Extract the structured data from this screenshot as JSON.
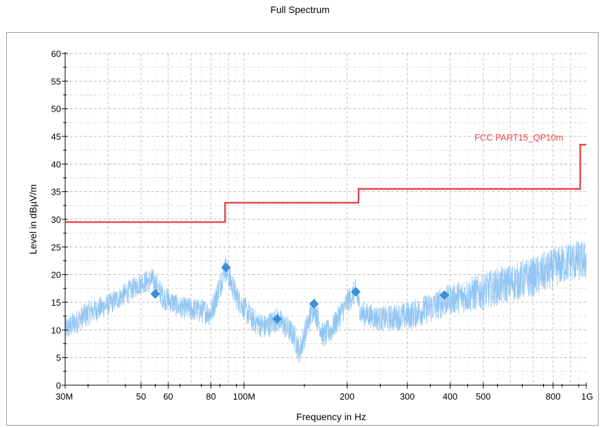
{
  "chart_data": {
    "type": "line",
    "title": "Full Spectrum",
    "xlabel": "Frequency in Hz",
    "ylabel": "Level in dBµV/m",
    "x_scale": "log",
    "xlim": [
      30000000,
      1000000000
    ],
    "ylim": [
      0,
      60
    ],
    "grid": true,
    "x_ticks": [
      {
        "value": 30000000,
        "label": "30M"
      },
      {
        "value": 50000000,
        "label": "50"
      },
      {
        "value": 60000000,
        "label": "60"
      },
      {
        "value": 80000000,
        "label": "80"
      },
      {
        "value": 100000000,
        "label": "100M"
      },
      {
        "value": 200000000,
        "label": "200"
      },
      {
        "value": 300000000,
        "label": "300"
      },
      {
        "value": 400000000,
        "label": "400"
      },
      {
        "value": 500000000,
        "label": "500"
      },
      {
        "value": 800000000,
        "label": "800"
      },
      {
        "value": 1000000000,
        "label": "1G"
      }
    ],
    "y_ticks": [
      0,
      5,
      10,
      15,
      20,
      25,
      30,
      35,
      40,
      45,
      50,
      55,
      60
    ],
    "limit_line": {
      "name": "FCC PART15_QP10m",
      "color": "#e8434b",
      "points": [
        [
          30000000,
          29.5
        ],
        [
          88000000,
          29.5
        ],
        [
          88000000,
          33.0
        ],
        [
          216000000,
          33.0
        ],
        [
          216000000,
          35.5
        ],
        [
          960000000,
          35.5
        ],
        [
          960000000,
          43.5
        ],
        [
          1000000000,
          43.5
        ]
      ]
    },
    "spectrum": {
      "color": "#92c5f2",
      "envelope": [
        [
          30000000,
          10.0,
          4.0
        ],
        [
          35000000,
          13.0,
          4.0
        ],
        [
          40000000,
          14.5,
          3.5
        ],
        [
          45000000,
          16.5,
          3.5
        ],
        [
          50000000,
          18.5,
          3.5
        ],
        [
          54000000,
          19.0,
          4.0
        ],
        [
          58000000,
          16.0,
          4.0
        ],
        [
          65000000,
          14.0,
          3.5
        ],
        [
          75000000,
          13.5,
          4.0
        ],
        [
          80000000,
          13.0,
          4.0
        ],
        [
          85000000,
          18.0,
          4.5
        ],
        [
          88000000,
          21.5,
          4.5
        ],
        [
          95000000,
          16.0,
          4.0
        ],
        [
          105000000,
          12.0,
          4.0
        ],
        [
          115000000,
          10.5,
          4.0
        ],
        [
          125000000,
          12.0,
          4.0
        ],
        [
          130000000,
          11.0,
          4.0
        ],
        [
          140000000,
          9.0,
          4.0
        ],
        [
          145000000,
          6.0,
          4.5
        ],
        [
          150000000,
          9.0,
          4.0
        ],
        [
          160000000,
          14.5,
          4.5
        ],
        [
          170000000,
          9.0,
          4.0
        ],
        [
          180000000,
          10.0,
          4.0
        ],
        [
          200000000,
          15.0,
          4.0
        ],
        [
          212000000,
          17.0,
          4.0
        ],
        [
          220000000,
          13.0,
          4.0
        ],
        [
          250000000,
          12.0,
          4.0
        ],
        [
          300000000,
          12.5,
          4.5
        ],
        [
          350000000,
          14.0,
          5.0
        ],
        [
          400000000,
          15.5,
          5.0
        ],
        [
          500000000,
          17.0,
          6.0
        ],
        [
          600000000,
          18.5,
          6.0
        ],
        [
          700000000,
          19.5,
          6.5
        ],
        [
          800000000,
          21.0,
          6.5
        ],
        [
          900000000,
          22.5,
          6.5
        ],
        [
          1000000000,
          22.5,
          6.5
        ]
      ]
    },
    "markers": {
      "color": "#3b8fd8",
      "points": [
        [
          55000000,
          16.5
        ],
        [
          88500000,
          21.3
        ],
        [
          125000000,
          12.0
        ],
        [
          160000000,
          14.7
        ],
        [
          212000000,
          16.9
        ],
        [
          385000000,
          16.3
        ]
      ]
    }
  }
}
